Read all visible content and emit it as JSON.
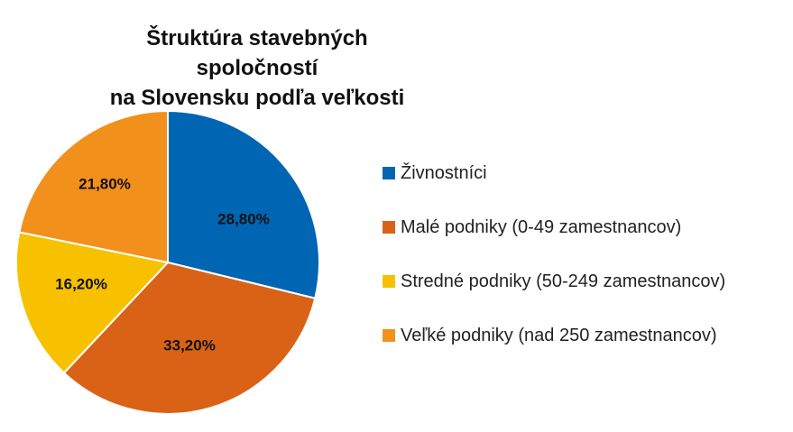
{
  "chart_data": {
    "type": "pie",
    "title_lines": [
      "Štruktúra stavebných spoločností",
      "na Slovensku podľa veľkosti"
    ],
    "slices": [
      {
        "label": "Živnostníci",
        "value": 28.8,
        "value_label": "28,80%",
        "color": "#0065b3"
      },
      {
        "label": "Malé podniky (0-49 zamestnancov)",
        "value": 33.2,
        "value_label": "33,20%",
        "color": "#d96217"
      },
      {
        "label": "Stredné podniky (50-249 zamestnancov)",
        "value": 16.2,
        "value_label": "16,20%",
        "color": "#f7c100"
      },
      {
        "label": "Veľké podniky (nad 250 zamestnancov)",
        "value": 21.8,
        "value_label": "21,80%",
        "color": "#f2901c"
      }
    ],
    "legend_position": "right",
    "start": "12 o'clock, clockwise"
  }
}
